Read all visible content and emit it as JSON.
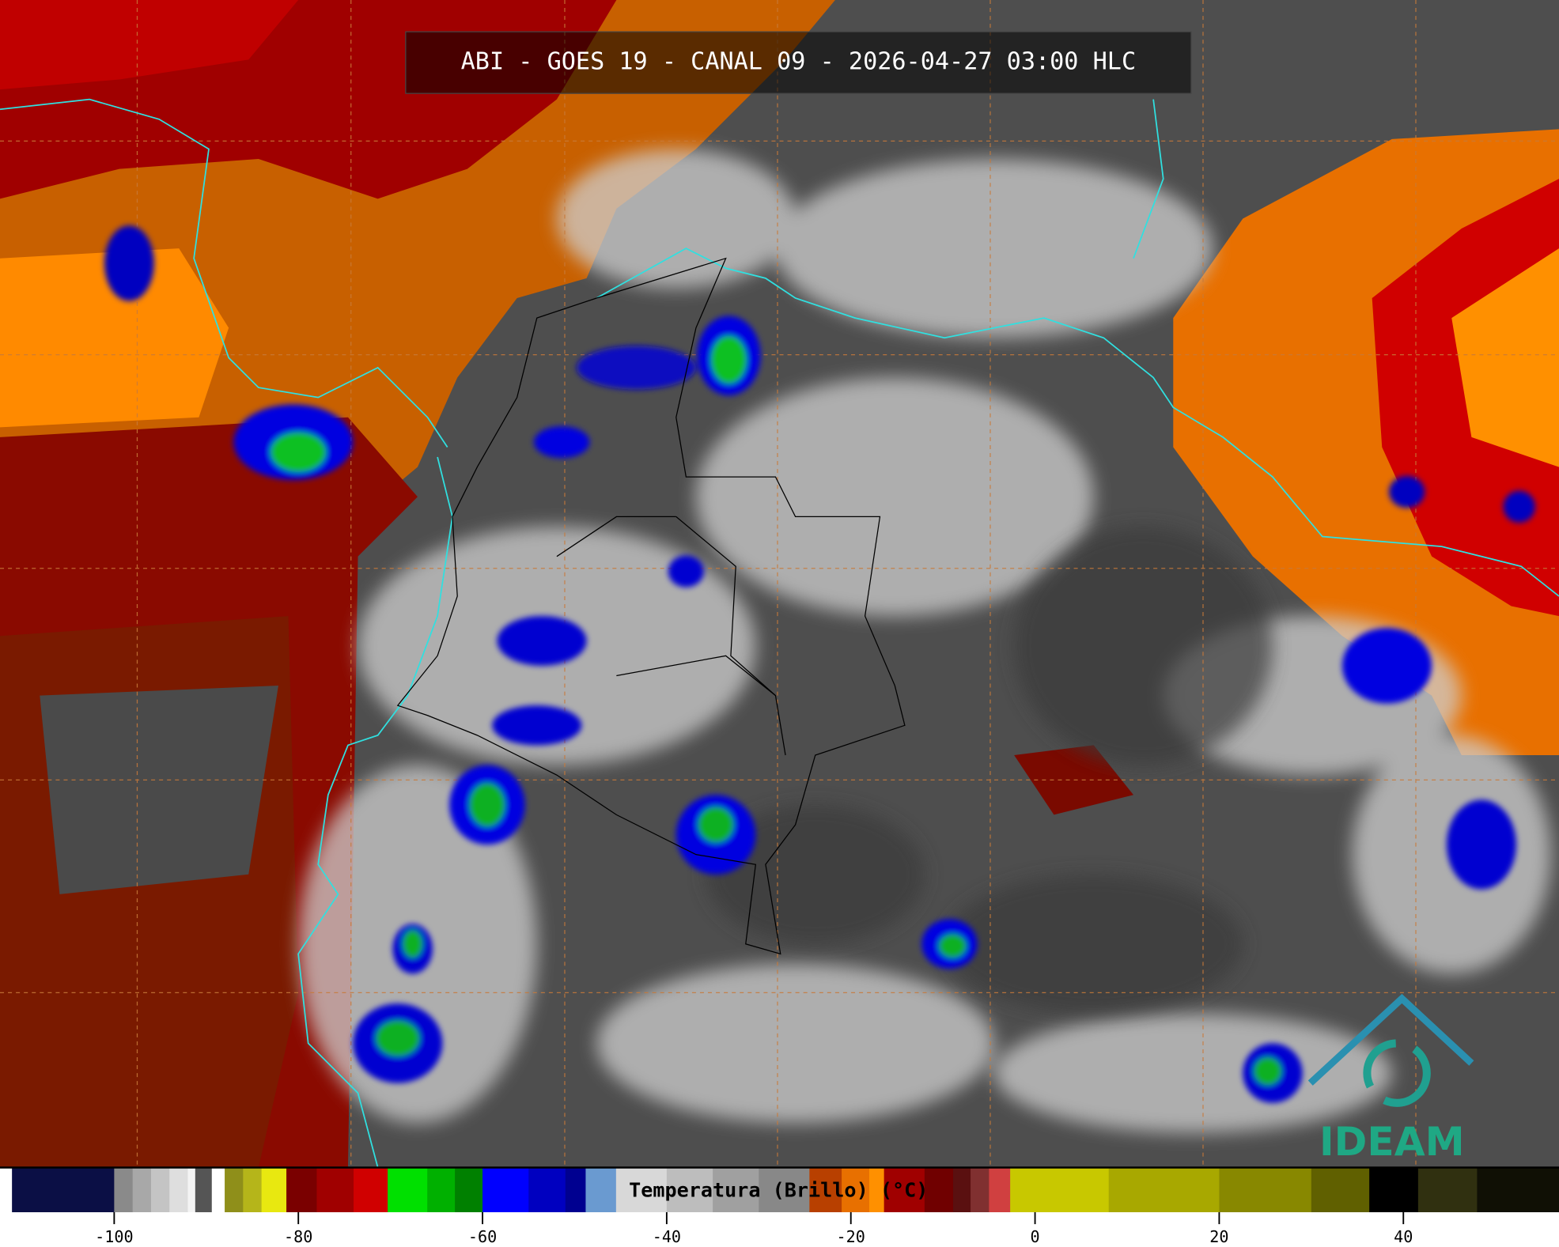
{
  "header": {
    "title": "ABI - GOES 19 - CANAL 09 - 2026-04-27 03:00 HLC"
  },
  "colorbar": {
    "label": "Temperatura (Brillo) (°C)",
    "lim": [
      -112.4,
      56.9
    ],
    "ticks": [
      -100,
      -80,
      -60,
      -40,
      -20,
      0,
      20,
      40
    ],
    "segments": [
      {
        "from": -112.4,
        "to": -111.1,
        "color": "#ffffff"
      },
      {
        "from": -111.1,
        "to": -100,
        "color": "#0b0f45"
      },
      {
        "from": -100,
        "to": -98,
        "color": "#8a8a8a"
      },
      {
        "from": -98,
        "to": -96,
        "color": "#a8a8a8"
      },
      {
        "from": -96,
        "to": -94,
        "color": "#c4c4c4"
      },
      {
        "from": -94,
        "to": -92,
        "color": "#dedede"
      },
      {
        "from": -92,
        "to": -91.2,
        "color": "#f4f4f4"
      },
      {
        "from": -91.2,
        "to": -89.4,
        "color": "#555555"
      },
      {
        "from": -89.4,
        "to": -88,
        "color": "#ffffff"
      },
      {
        "from": -88,
        "to": -86,
        "color": "#8f8f1a"
      },
      {
        "from": -86,
        "to": -84,
        "color": "#b5b51a"
      },
      {
        "from": -84,
        "to": -81.3,
        "color": "#e8e810"
      },
      {
        "from": -81.3,
        "to": -78,
        "color": "#7a0000"
      },
      {
        "from": -78,
        "to": -74,
        "color": "#a00000"
      },
      {
        "from": -74,
        "to": -70.3,
        "color": "#d00000"
      },
      {
        "from": -70.3,
        "to": -66,
        "color": "#00e000"
      },
      {
        "from": -66,
        "to": -63,
        "color": "#00b000"
      },
      {
        "from": -63,
        "to": -60,
        "color": "#008000"
      },
      {
        "from": -60,
        "to": -55,
        "color": "#0000ff"
      },
      {
        "from": -55,
        "to": -51,
        "color": "#0000c0"
      },
      {
        "from": -51,
        "to": -48.8,
        "color": "#000090"
      },
      {
        "from": -48.8,
        "to": -45.5,
        "color": "#6a9ad0"
      },
      {
        "from": -45.5,
        "to": -40,
        "color": "#d8d8d8"
      },
      {
        "from": -40,
        "to": -35,
        "color": "#bdbdbd"
      },
      {
        "from": -35,
        "to": -30,
        "color": "#a0a0a0"
      },
      {
        "from": -30,
        "to": -24.5,
        "color": "#888888"
      },
      {
        "from": -24.5,
        "to": -21,
        "color": "#b84000"
      },
      {
        "from": -21,
        "to": -18,
        "color": "#e87000"
      },
      {
        "from": -18,
        "to": -16.4,
        "color": "#ff9000"
      },
      {
        "from": -16.4,
        "to": -12,
        "color": "#a00000"
      },
      {
        "from": -12,
        "to": -8.9,
        "color": "#700000"
      },
      {
        "from": -8.9,
        "to": -7,
        "color": "#5a1010"
      },
      {
        "from": -7,
        "to": -5,
        "color": "#803030"
      },
      {
        "from": -5,
        "to": -2.7,
        "color": "#d04040"
      },
      {
        "from": -2.7,
        "to": 8,
        "color": "#c8c800"
      },
      {
        "from": 8,
        "to": 20,
        "color": "#a8a800"
      },
      {
        "from": 20,
        "to": 30,
        "color": "#888800"
      },
      {
        "from": 30,
        "to": 36.3,
        "color": "#606000"
      },
      {
        "from": 36.3,
        "to": 41.6,
        "color": "#000000"
      },
      {
        "from": 41.6,
        "to": 48,
        "color": "#303010"
      },
      {
        "from": 48,
        "to": 56.9,
        "color": "#101005"
      }
    ]
  },
  "logo": {
    "text": "IDEAM"
  }
}
